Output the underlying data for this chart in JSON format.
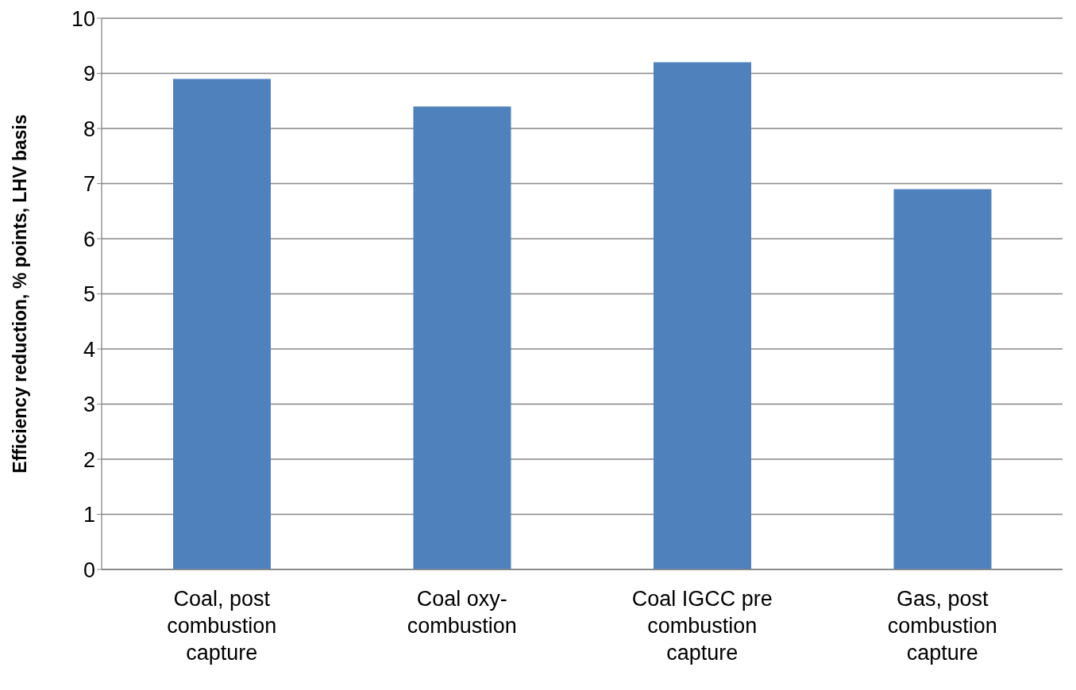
{
  "chart_data": {
    "type": "bar",
    "ylabel": "Efficiency reduction, % points, LHV basis",
    "categories": [
      "Coal, post combustion capture",
      "Coal oxy-combustion",
      "Coal IGCC pre combustion capture",
      "Gas, post combustion capture"
    ],
    "values": [
      8.9,
      8.4,
      9.2,
      6.9
    ],
    "color": "#4f81bd",
    "ylim": [
      0,
      10
    ],
    "yticks": [
      0,
      1,
      2,
      3,
      4,
      5,
      6,
      7,
      8,
      9,
      10
    ],
    "grid": "y"
  }
}
